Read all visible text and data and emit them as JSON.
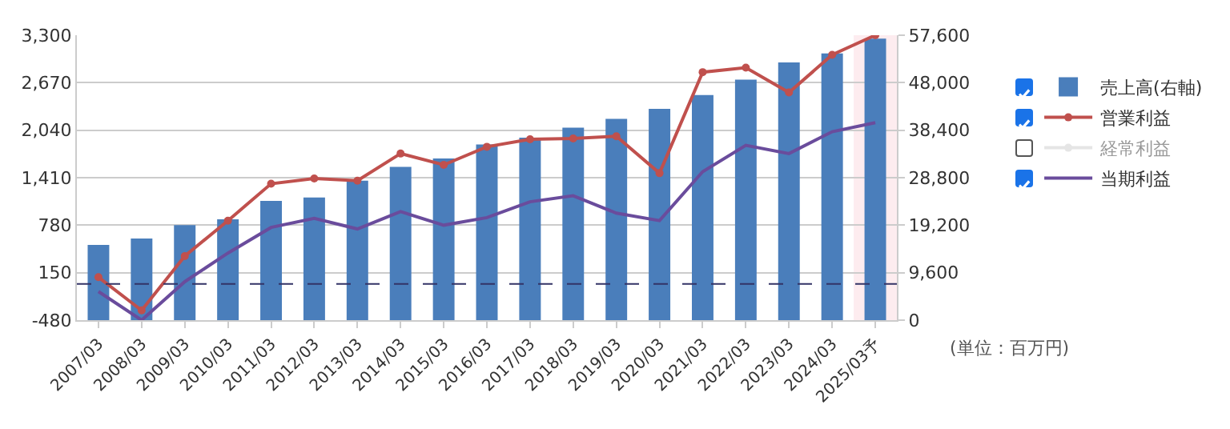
{
  "chart_data": {
    "type": "bar",
    "categories": [
      "2007/03",
      "2008/03",
      "2009/03",
      "2010/03",
      "2011/03",
      "2012/03",
      "2013/03",
      "2014/03",
      "2015/03",
      "2016/03",
      "2017/03",
      "2018/03",
      "2019/03",
      "2020/03",
      "2021/03",
      "2022/03",
      "2023/03",
      "2024/03",
      "2025/03予"
    ],
    "series": [
      {
        "name": "売上高(右軸)",
        "axis": "y2",
        "color": "#4a7ebb",
        "values": [
          15200,
          16500,
          19200,
          20400,
          24100,
          24800,
          28200,
          31000,
          32700,
          35500,
          36900,
          38900,
          40700,
          42700,
          45500,
          48600,
          52100,
          53900,
          56900
        ]
      },
      {
        "name": "営業利益",
        "type": "line",
        "color": "#c0504d",
        "marker": "circle",
        "values": [
          90,
          -350,
          370,
          840,
          1330,
          1400,
          1370,
          1730,
          1580,
          1820,
          1920,
          1930,
          1960,
          1470,
          2810,
          2870,
          2540,
          3040,
          3300
        ]
      },
      {
        "name": "経常利益",
        "type": "line",
        "color": "#cccccc",
        "marker": "circle",
        "values": [
          null,
          null,
          null,
          null,
          null,
          null,
          null,
          null,
          null,
          null,
          null,
          null,
          null,
          null,
          null,
          null,
          null,
          null,
          null
        ]
      },
      {
        "name": "当期利益",
        "type": "line",
        "color": "#6a4c9c",
        "marker": "none",
        "values": [
          -100,
          -480,
          30,
          410,
          750,
          870,
          730,
          960,
          780,
          880,
          1090,
          1170,
          940,
          840,
          1490,
          1840,
          1730,
          2020,
          2140
        ]
      }
    ],
    "ylim": [
      -480,
      3300
    ],
    "yticks": [
      -480,
      150,
      780,
      {
        "value": 1410,
        "label": "1,410"
      },
      {
        "value": 2040,
        "label": "2,040"
      },
      {
        "value": 2670,
        "label": "2,670"
      },
      {
        "value": 3300,
        "label": "3,300"
      }
    ],
    "y2lim": [
      0,
      57600
    ],
    "y2ticks": [
      0,
      {
        "value": 9600,
        "label": "9,600"
      },
      {
        "value": 19200,
        "label": "19,200"
      },
      {
        "value": 28800,
        "label": "28,800"
      },
      {
        "value": 38400,
        "label": "38,400"
      },
      {
        "value": 48000,
        "label": "48,000"
      },
      {
        "value": 57600,
        "label": "57,600"
      }
    ],
    "ref_lines": [
      {
        "axis": "y",
        "value": 0,
        "color": "#333366",
        "line_style": "dashed"
      }
    ],
    "bands": [
      {
        "axis": "x",
        "from": "2025/03予",
        "to": "2025/03予",
        "color": "#fdecef"
      }
    ],
    "annotations": [
      "(単位：百万円)"
    ],
    "grid": "y",
    "legend": "right"
  }
}
